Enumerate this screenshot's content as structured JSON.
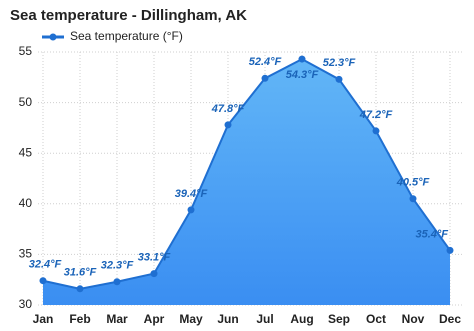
{
  "chart_data": {
    "type": "area",
    "title": "Sea temperature - Dillingham, AK",
    "categories": [
      "Jan",
      "Feb",
      "Mar",
      "Apr",
      "May",
      "Jun",
      "Jul",
      "Aug",
      "Sep",
      "Oct",
      "Nov",
      "Dec"
    ],
    "series": [
      {
        "name": "Sea temperature (°F)",
        "color": "#1f6fd1",
        "values": [
          32.4,
          31.6,
          32.3,
          33.1,
          39.4,
          47.8,
          52.4,
          54.3,
          52.3,
          47.2,
          40.5,
          35.4
        ],
        "value_labels": [
          "32.4°F",
          "31.6°F",
          "32.3°F",
          "33.1°F",
          "39.4°F",
          "47.8°F",
          "52.4°F",
          "54.3°F",
          "52.3°F",
          "47.2°F",
          "40.5°F",
          "35.4°F"
        ]
      }
    ],
    "ylim": [
      30,
      55
    ],
    "yticks": [
      30,
      35,
      40,
      45,
      50,
      55
    ],
    "grid": true
  }
}
